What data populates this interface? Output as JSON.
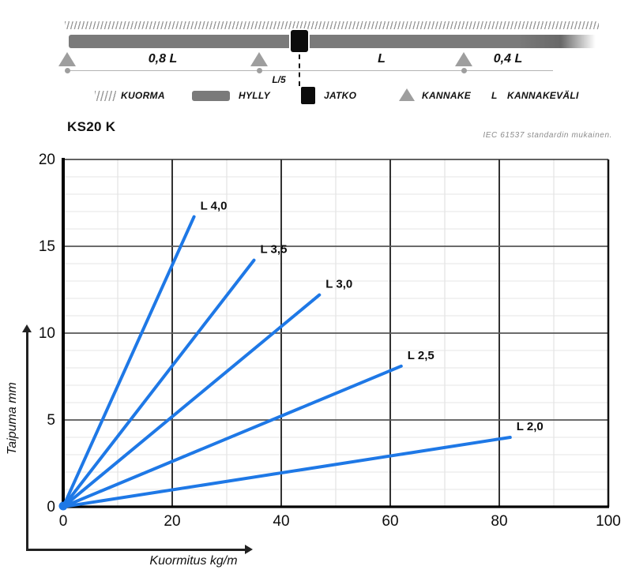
{
  "schematic": {
    "dim_labels": {
      "left": "0,8 L",
      "middle": "L",
      "right": "0,4 L",
      "joint_offset": "L/5"
    }
  },
  "legend": {
    "items": [
      {
        "label": "KUORMA"
      },
      {
        "label": "HYLLY"
      },
      {
        "label": "JATKO"
      },
      {
        "label": "KANNAKE"
      },
      {
        "symbol": "L",
        "label": "KANNAKEVÄLI"
      }
    ]
  },
  "chart": {
    "title": "KS20 K",
    "standard_note": "IEC 61537 standardin mukainen."
  },
  "colors": {
    "line_blue": "#1e78e6",
    "beam_gray": "#7a7a7a",
    "support_gray": "#9e9e9e",
    "joint_black": "#0c0c0c"
  },
  "chart_data": {
    "type": "line",
    "title": "KS20 K",
    "xlabel": "Kuormitus kg/m",
    "ylabel": "Taipuma mm",
    "xlim": [
      0,
      100
    ],
    "ylim": [
      0,
      20
    ],
    "x_major_ticks": [
      0,
      20,
      40,
      60,
      80,
      100
    ],
    "y_major_ticks": [
      0,
      5,
      10,
      15,
      20
    ],
    "x_minor_step": 10,
    "y_minor_step": 1,
    "grid": true,
    "legend_position": "inline-labels",
    "line_color": "#1e78e6",
    "series": [
      {
        "name": "L 4,0",
        "x": [
          0,
          24
        ],
        "y": [
          0,
          16.7
        ]
      },
      {
        "name": "L 3,5",
        "x": [
          0,
          35
        ],
        "y": [
          0,
          14.2
        ]
      },
      {
        "name": "L 3,0",
        "x": [
          0,
          47
        ],
        "y": [
          0,
          12.2
        ]
      },
      {
        "name": "L 2,5",
        "x": [
          0,
          62
        ],
        "y": [
          0,
          8.1
        ]
      },
      {
        "name": "L 2,0",
        "x": [
          0,
          82
        ],
        "y": [
          0,
          4.0
        ]
      }
    ]
  }
}
